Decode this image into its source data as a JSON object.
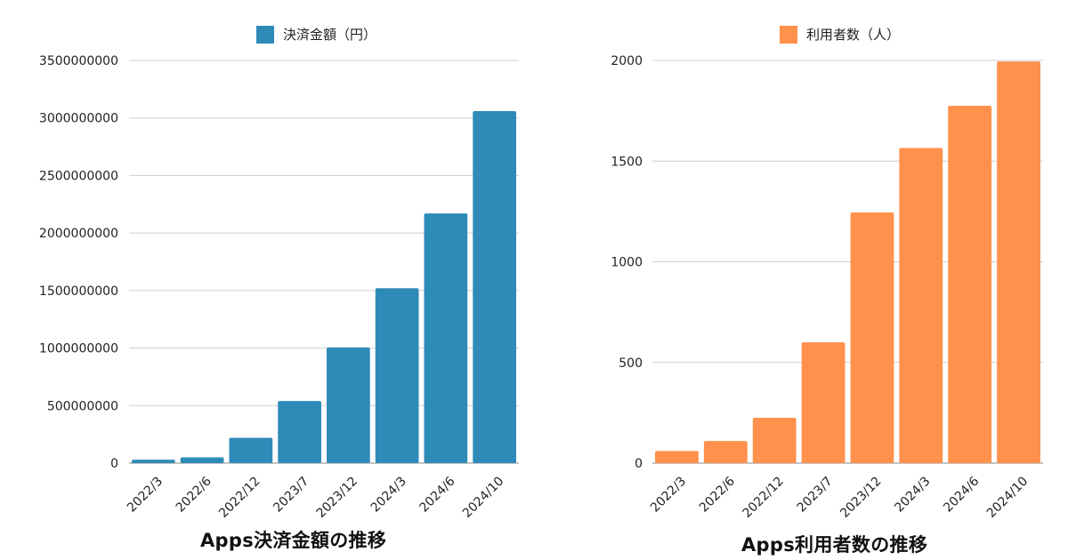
{
  "chart_data": [
    {
      "type": "bar",
      "title": "Apps決済金額の推移",
      "legend": "決済金額（円）",
      "legend_position": "top-center",
      "color": "#2E8BB8",
      "categories": [
        "2022/3",
        "2022/6",
        "2022/12",
        "2023/7",
        "2023/12",
        "2024/3",
        "2024/6",
        "2024/10"
      ],
      "values": [
        30000000,
        50000000,
        220000000,
        540000000,
        1005000000,
        1520000000,
        2170000000,
        3060000000
      ],
      "yticks": [
        "0",
        "500000000",
        "1000000000",
        "1500000000",
        "2000000000",
        "2500000000",
        "3000000000",
        "3500000000"
      ],
      "ylim": [
        0,
        3500000000
      ],
      "grid": true
    },
    {
      "type": "bar",
      "title": "Apps利用者数の推移",
      "legend": "利用者数（人）",
      "legend_position": "top-center",
      "color": "#FF914D",
      "categories": [
        "2022/3",
        "2022/6",
        "2022/12",
        "2023/7",
        "2023/12",
        "2024/3",
        "2024/6",
        "2024/10"
      ],
      "values": [
        60,
        110,
        225,
        600,
        1245,
        1565,
        1775,
        1995
      ],
      "yticks": [
        "0",
        "500",
        "1000",
        "1500",
        "2000"
      ],
      "ylim": [
        0,
        2000
      ],
      "grid": true
    }
  ]
}
